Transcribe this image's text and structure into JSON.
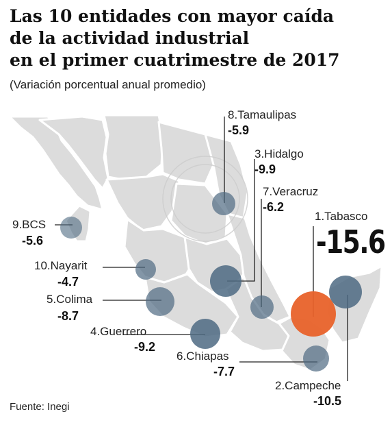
{
  "title": {
    "line1": "Las 10 entidades con mayor caída",
    "line2": "de la actividad industrial",
    "line3": "en el primer cuatrimestre de 2017"
  },
  "subtitle": "(Variación porcentual anual promedio)",
  "source": "Fuente: Inegi",
  "colors": {
    "bubble": "#4e6a82",
    "highlight": "#e8622a",
    "land": "#dcdcdc"
  },
  "entities": [
    {
      "rank_label": "1.Tabasco",
      "value": "-15.6"
    },
    {
      "rank_label": "2.Campeche",
      "value": "-10.5"
    },
    {
      "rank_label": "3.Hidalgo",
      "value": "-9.9"
    },
    {
      "rank_label": "4.Guerrero",
      "value": "-9.2"
    },
    {
      "rank_label": "5.Colima",
      "value": "-8.7"
    },
    {
      "rank_label": "6.Chiapas",
      "value": "-7.7"
    },
    {
      "rank_label": "7.Veracruz",
      "value": "-6.2"
    },
    {
      "rank_label": "8.Tamaulipas",
      "value": "-5.9"
    },
    {
      "rank_label": "9.BCS",
      "value": "-5.6"
    },
    {
      "rank_label": "10.Nayarit",
      "value": "-4.7"
    }
  ]
}
